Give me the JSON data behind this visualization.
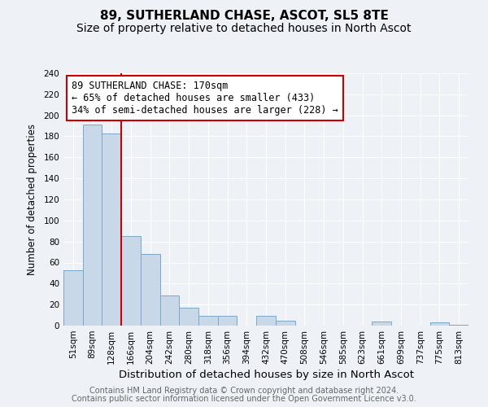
{
  "title": "89, SUTHERLAND CHASE, ASCOT, SL5 8TE",
  "subtitle": "Size of property relative to detached houses in North Ascot",
  "xlabel": "Distribution of detached houses by size in North Ascot",
  "ylabel": "Number of detached properties",
  "footer_line1": "Contains HM Land Registry data © Crown copyright and database right 2024.",
  "footer_line2": "Contains public sector information licensed under the Open Government Licence v3.0.",
  "bin_labels": [
    "51sqm",
    "89sqm",
    "128sqm",
    "166sqm",
    "204sqm",
    "242sqm",
    "280sqm",
    "318sqm",
    "356sqm",
    "394sqm",
    "432sqm",
    "470sqm",
    "508sqm",
    "546sqm",
    "585sqm",
    "623sqm",
    "661sqm",
    "699sqm",
    "737sqm",
    "775sqm",
    "813sqm"
  ],
  "bar_values": [
    53,
    191,
    183,
    85,
    68,
    29,
    17,
    9,
    9,
    0,
    9,
    5,
    0,
    0,
    0,
    0,
    4,
    0,
    0,
    3,
    1
  ],
  "bar_color": "#c8d8e8",
  "bar_edgecolor": "#7aa8c8",
  "vline_x": 2.5,
  "vline_color": "#cc0000",
  "annotation_line1": "89 SUTHERLAND CHASE: 170sqm",
  "annotation_line2": "← 65% of detached houses are smaller (433)",
  "annotation_line3": "34% of semi-detached houses are larger (228) →",
  "annotation_box_edgecolor": "#cc0000",
  "annotation_box_facecolor": "#ffffff",
  "ylim": [
    0,
    240
  ],
  "yticks": [
    0,
    20,
    40,
    60,
    80,
    100,
    120,
    140,
    160,
    180,
    200,
    220,
    240
  ],
  "background_color": "#eef2f7",
  "axes_background": "#eef2f7",
  "grid_color": "#ffffff",
  "title_fontsize": 11,
  "subtitle_fontsize": 10,
  "xlabel_fontsize": 9.5,
  "ylabel_fontsize": 8.5,
  "tick_fontsize": 7.5,
  "annotation_fontsize": 8.5,
  "footer_fontsize": 7
}
